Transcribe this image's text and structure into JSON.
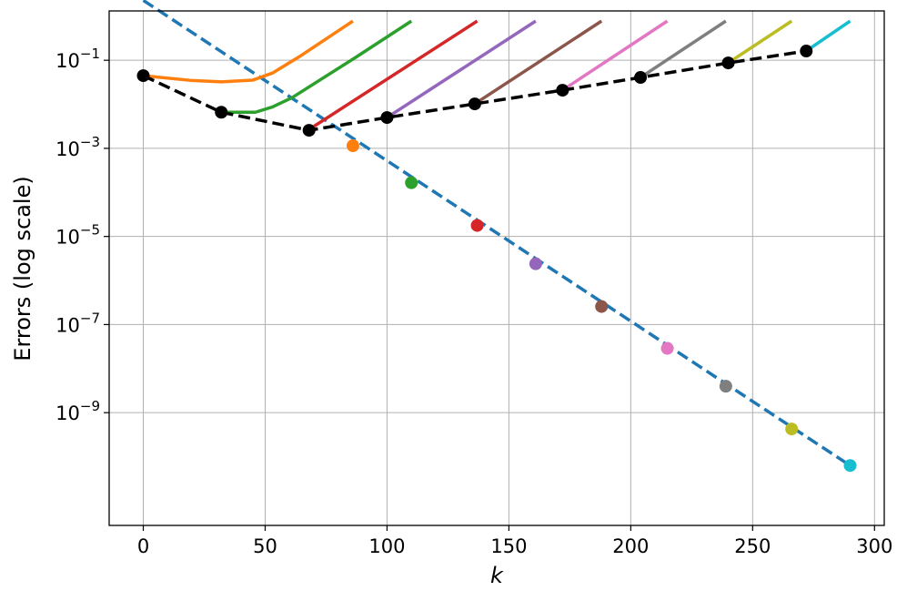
{
  "chart_data": {
    "type": "line",
    "title": "",
    "xlabel": "k",
    "ylabel": "Errors (log scale)",
    "xlim": [
      -14,
      304
    ],
    "ylim_log10": [
      -11.56,
      0.12
    ],
    "y_scale": "log",
    "grid": true,
    "x_ticks": [
      0,
      50,
      100,
      150,
      200,
      250,
      300
    ],
    "x_tick_labels": [
      "0",
      "50",
      "100",
      "150",
      "200",
      "250",
      "300"
    ],
    "y_ticks_log10": [
      -1,
      -3,
      -5,
      -7,
      -9
    ],
    "y_tick_labels": [
      {
        "base": "10",
        "exp": "−1"
      },
      {
        "base": "10",
        "exp": "−3"
      },
      {
        "base": "10",
        "exp": "−5"
      },
      {
        "base": "10",
        "exp": "−7"
      },
      {
        "base": "10",
        "exp": "−9"
      }
    ],
    "reference_line": {
      "color": "#1f77b4",
      "style": "dashed",
      "k": [
        0,
        290
      ],
      "log10_error": [
        0.36,
        -10.2
      ]
    },
    "reference_points": [
      {
        "k": 86,
        "log10_error": -2.94,
        "color": "#ff7f0e"
      },
      {
        "k": 110,
        "log10_error": -3.78,
        "color": "#2ca02c"
      },
      {
        "k": 137,
        "log10_error": -4.75,
        "color": "#d62728"
      },
      {
        "k": 161,
        "log10_error": -5.62,
        "color": "#9467bd"
      },
      {
        "k": 188,
        "log10_error": -6.59,
        "color": "#8c564b"
      },
      {
        "k": 215,
        "log10_error": -7.54,
        "color": "#e377c2"
      },
      {
        "k": 239,
        "log10_error": -8.4,
        "color": "#7f7f7f"
      },
      {
        "k": 266,
        "log10_error": -9.37,
        "color": "#bcbd22"
      },
      {
        "k": 290,
        "log10_error": -10.2,
        "color": "#17becf"
      }
    ],
    "restart_line": {
      "color": "#000000",
      "style": "dashed",
      "k": [
        0,
        32,
        68,
        100,
        136,
        172,
        204,
        240,
        272
      ],
      "log10_error": [
        -1.35,
        -2.18,
        -2.59,
        -2.3,
        -1.99,
        -1.68,
        -1.39,
        -1.06,
        -0.79
      ]
    },
    "series": [
      {
        "color": "#ff7f0e",
        "k": [
          0,
          20,
          32,
          45,
          53,
          64,
          86
        ],
        "log10_error": [
          -1.35,
          -1.46,
          -1.49,
          -1.45,
          -1.29,
          -0.92,
          -0.11
        ]
      },
      {
        "color": "#2ca02c",
        "k": [
          32,
          46,
          53,
          61,
          87,
          110
        ],
        "log10_error": [
          -2.18,
          -2.18,
          -2.06,
          -1.85,
          -0.94,
          -0.11
        ]
      },
      {
        "color": "#d62728",
        "k": [
          70,
          137
        ],
        "log10_error": [
          -2.5,
          -0.11
        ]
      },
      {
        "color": "#9467bd",
        "k": [
          100,
          161
        ],
        "log10_error": [
          -2.3,
          -0.11
        ]
      },
      {
        "color": "#8c564b",
        "k": [
          136,
          188
        ],
        "log10_error": [
          -1.99,
          -0.11
        ]
      },
      {
        "color": "#e377c2",
        "k": [
          172,
          215
        ],
        "log10_error": [
          -1.68,
          -0.11
        ]
      },
      {
        "color": "#7f7f7f",
        "k": [
          204,
          239
        ],
        "log10_error": [
          -1.39,
          -0.11
        ]
      },
      {
        "color": "#bcbd22",
        "k": [
          240,
          266
        ],
        "log10_error": [
          -1.06,
          -0.11
        ]
      },
      {
        "color": "#17becf",
        "k": [
          272,
          290
        ],
        "log10_error": [
          -0.79,
          -0.11
        ]
      }
    ]
  }
}
